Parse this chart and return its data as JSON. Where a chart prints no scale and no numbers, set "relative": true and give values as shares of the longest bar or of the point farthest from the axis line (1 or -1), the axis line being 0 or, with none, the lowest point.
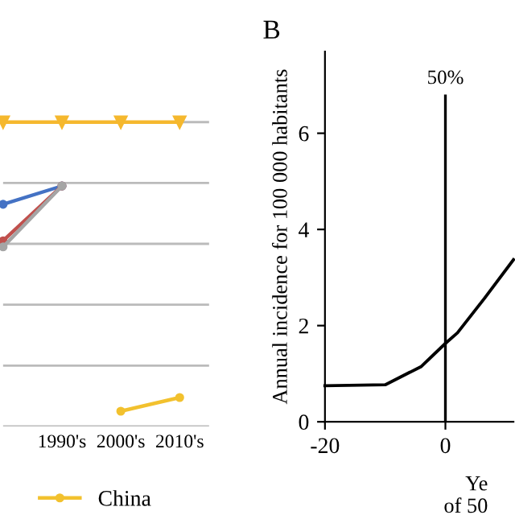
{
  "chart_data": [
    {
      "type": "line",
      "relative": true,
      "categories": [
        null,
        "1990's",
        "2000's",
        "2010's"
      ],
      "grid": "y",
      "legend": "bottom",
      "marker": "circle",
      "series": [
        {
          "color": "#f5b82e",
          "values": [
            1.0,
            1.0,
            1.0,
            1.0
          ],
          "marker": "triangle"
        },
        {
          "color": "#4472c4",
          "values": [
            0.73,
            0.79,
            null,
            null
          ]
        },
        {
          "color": "#c0504d",
          "values": [
            0.61,
            0.79,
            null,
            null
          ]
        },
        {
          "color": "#a5a5a5",
          "values": [
            0.59,
            0.79,
            null,
            null
          ]
        },
        {
          "name": "China",
          "color": "#f2c12e",
          "values": [
            null,
            null,
            0.05,
            0.095
          ]
        }
      ]
    },
    {
      "type": "line",
      "title": "B",
      "ylabel": "Annual incidence for 100 000 habitants",
      "xlabel": "Ye\nof 50",
      "x": [
        -20,
        -10,
        -4,
        0,
        2,
        6.5,
        11.3
      ],
      "xlim": [
        -20,
        11.3
      ],
      "xticks": [
        -20,
        0
      ],
      "ylim": [
        0,
        7.7
      ],
      "yticks": [
        0,
        2,
        4,
        6
      ],
      "grid": false,
      "series": [
        {
          "color": "#000000",
          "values": [
            0.75,
            0.77,
            1.15,
            1.63,
            1.85,
            2.57,
            3.37
          ]
        }
      ],
      "ref_lines": [
        {
          "axis": "x",
          "value": 0,
          "color": "#000000"
        }
      ],
      "annotations": [
        {
          "text": "50%",
          "x": 0,
          "y": 6.8
        }
      ]
    }
  ]
}
